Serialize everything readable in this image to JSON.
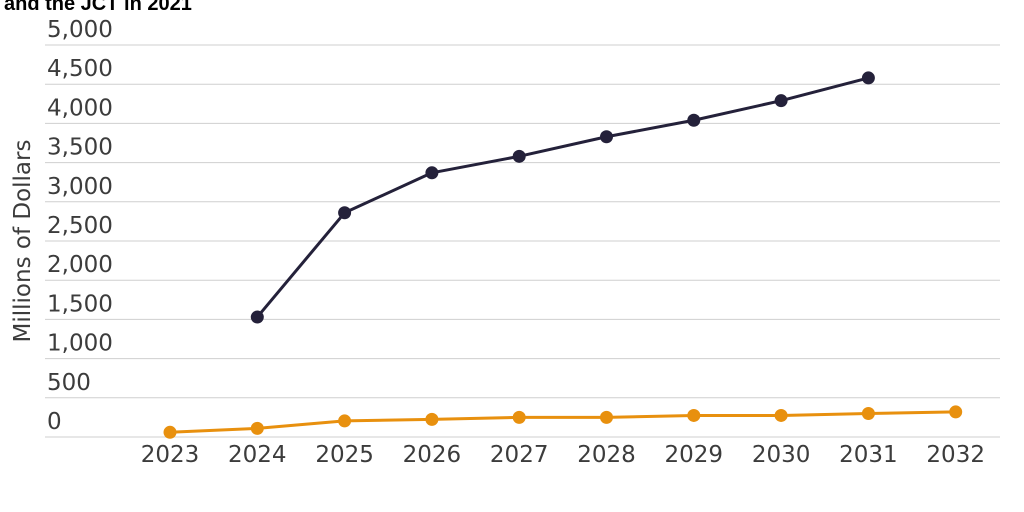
{
  "chart_data": {
    "type": "line",
    "title": "and the JCT in 2021",
    "xlabel": "",
    "ylabel": "Millions of Dollars",
    "x": [
      2023,
      2024,
      2025,
      2026,
      2027,
      2028,
      2029,
      2030,
      2031,
      2032
    ],
    "x_tick_labels": [
      "2023",
      "2024",
      "2025",
      "2026",
      "2027",
      "2028",
      "2029",
      "2030",
      "2031",
      "2032"
    ],
    "ylim": [
      0,
      5000
    ],
    "y_ticks": [
      0,
      500,
      1000,
      1500,
      2000,
      2500,
      3000,
      3500,
      4000,
      4500,
      5000
    ],
    "y_tick_labels": [
      "0",
      "500",
      "1,000",
      "1,500",
      "2,000",
      "2,500",
      "3,000",
      "3,500",
      "4,000",
      "4,500",
      "5,000"
    ],
    "grid": true,
    "legend": "none",
    "series": [
      {
        "color": "#24213a",
        "values": [
          null,
          1530,
          2860,
          3370,
          3580,
          3830,
          4040,
          4290,
          4580,
          null
        ]
      },
      {
        "color": "#e8900e",
        "values": [
          60,
          110,
          205,
          225,
          250,
          250,
          275,
          275,
          300,
          320
        ]
      }
    ]
  }
}
